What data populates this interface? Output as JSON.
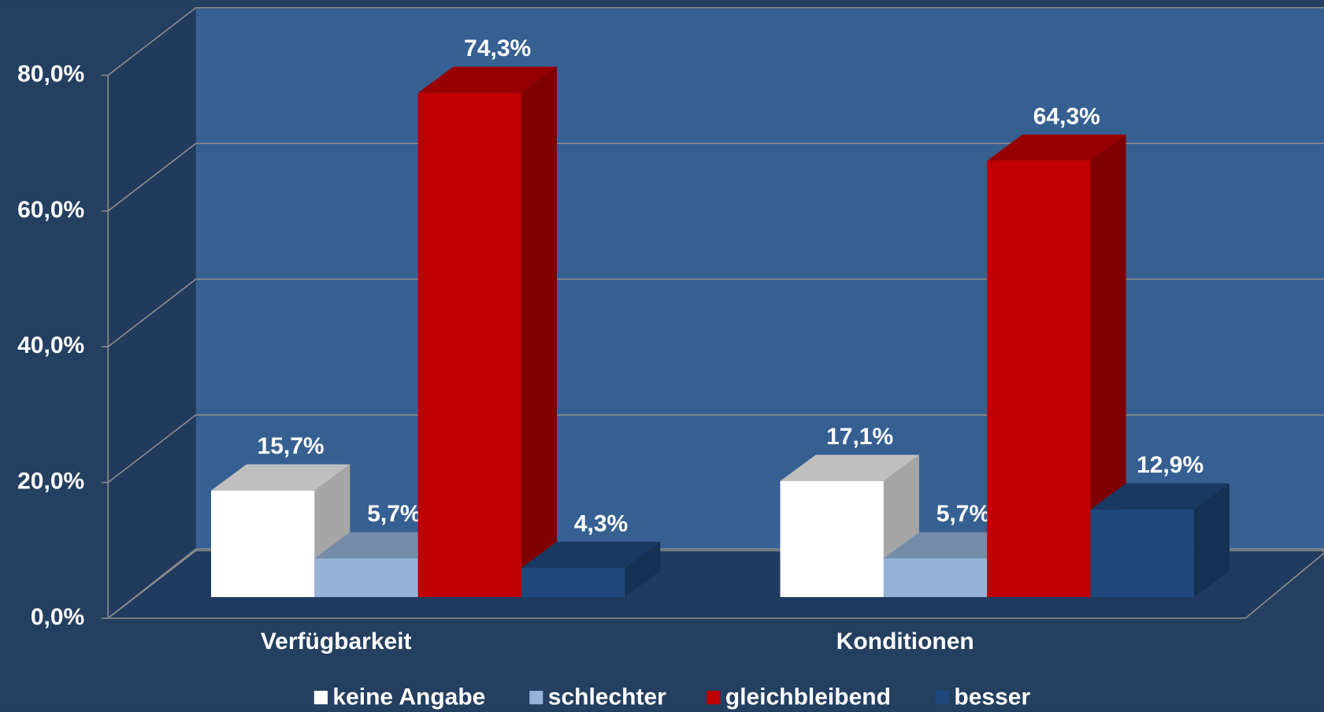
{
  "chart_data": {
    "type": "bar3d",
    "categories": [
      "Verfügbarkeit",
      "Konditionen"
    ],
    "series": [
      {
        "name": "keine Angabe",
        "color": "#ffffff",
        "values": [
          15.7,
          17.1
        ],
        "value_labels": [
          "15,7%",
          "17,1%"
        ]
      },
      {
        "name": "schlechter",
        "color": "#95b3d7",
        "values": [
          5.7,
          5.7
        ],
        "value_labels": [
          "5,7%",
          "5,7%"
        ]
      },
      {
        "name": "gleichbleibend",
        "color": "#c00000",
        "values": [
          74.3,
          64.3
        ],
        "value_labels": [
          "74,3%",
          "64,3%"
        ]
      },
      {
        "name": "besser",
        "color": "#1f497d",
        "values": [
          4.3,
          12.9
        ],
        "value_labels": [
          "4,3%",
          "12,9%"
        ]
      }
    ],
    "ylim": [
      0,
      80
    ],
    "yticks": [
      {
        "value": 0,
        "label": "0,0%"
      },
      {
        "value": 20,
        "label": "20,0%"
      },
      {
        "value": 40,
        "label": "40,0%"
      },
      {
        "value": 60,
        "label": "60,0%"
      },
      {
        "value": 80,
        "label": "80,0%"
      }
    ],
    "grid": true,
    "legend": "bottom"
  }
}
